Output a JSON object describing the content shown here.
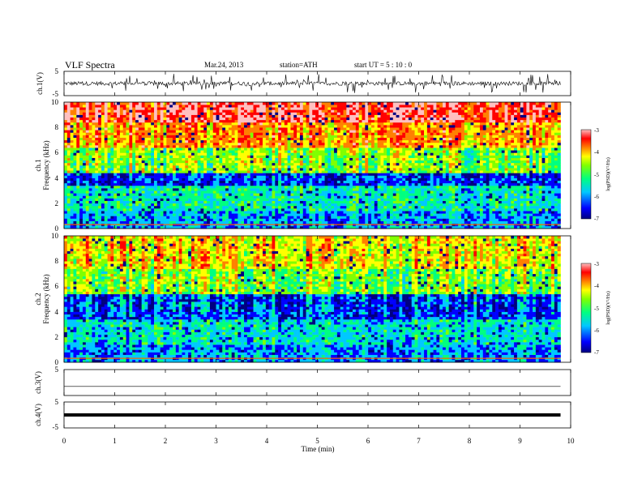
{
  "header": {
    "title": "VLF  Spectra",
    "date": "Mar.24, 2013",
    "station": "station=ATH",
    "start_time": "start  UT  =   5  : 10 : 0"
  },
  "chart_data": [
    {
      "type": "line",
      "panel": "ch1-waveform",
      "ylabel": "ch.1(V)",
      "ylim": [
        -5,
        5
      ],
      "yticks": [
        "5",
        "-5"
      ],
      "description_level": "noisy signal centred near 0 V, spikes up to about ±4 V"
    },
    {
      "type": "heatmap",
      "panel": "ch1-spectrogram",
      "ylabel": "ch.1",
      "ylabel2": "Frequency  (kHz)",
      "ylim": [
        0,
        10
      ],
      "yticks": [
        "0",
        "2",
        "4",
        "6",
        "8",
        "10"
      ],
      "colorbar": {
        "label": "log(PSD)(V²/Hz)",
        "ticks": [
          "-3",
          "-4",
          "-5",
          "-6",
          "-7"
        ],
        "range": [
          -7,
          -3
        ]
      },
      "bands": [
        {
          "f_from": 8.5,
          "f_to": 10,
          "level": -3.6
        },
        {
          "f_from": 6.5,
          "f_to": 8.5,
          "level": -4.2
        },
        {
          "f_from": 4.5,
          "f_to": 6.5,
          "level": -5.0
        },
        {
          "f_from": 3.5,
          "f_to": 4.5,
          "level": -6.3
        },
        {
          "f_from": 1.5,
          "f_to": 3.5,
          "level": -5.6
        },
        {
          "f_from": 0,
          "f_to": 1.5,
          "level": -6.0
        }
      ]
    },
    {
      "type": "heatmap",
      "panel": "ch2-spectrogram",
      "ylabel": "ch.2",
      "ylabel2": "Frequency  (kHz)",
      "ylim": [
        0,
        10
      ],
      "yticks": [
        "0",
        "2",
        "4",
        "6",
        "8",
        "10"
      ],
      "colorbar": {
        "label": "log(PSD)(V²/Hz)",
        "ticks": [
          "-3",
          "-4",
          "-5",
          "-6",
          "-7"
        ],
        "range": [
          -7,
          -3
        ]
      },
      "bands": [
        {
          "f_from": 7.5,
          "f_to": 10,
          "level": -4.5
        },
        {
          "f_from": 5.5,
          "f_to": 7.5,
          "level": -5.0
        },
        {
          "f_from": 3.5,
          "f_to": 5.5,
          "level": -6.2
        },
        {
          "f_from": 1.5,
          "f_to": 3.5,
          "level": -5.7
        },
        {
          "f_from": 0,
          "f_to": 1.5,
          "level": -6.0
        }
      ]
    },
    {
      "type": "line",
      "panel": "ch3-waveform",
      "ylabel": "ch.3(V)",
      "ylim": [
        -5,
        5
      ],
      "yticks": [
        "5"
      ],
      "level": -1.5
    },
    {
      "type": "line",
      "panel": "ch4-waveform",
      "ylabel": "ch.4(V)",
      "ylim": [
        -5,
        5
      ],
      "yticks": [
        "5",
        "-5"
      ],
      "level": 0
    }
  ],
  "xaxis": {
    "xlabel": "Time  (min)",
    "xlim": [
      0,
      10
    ],
    "ticks": [
      "0",
      "1",
      "2",
      "3",
      "4",
      "5",
      "6",
      "7",
      "8",
      "9",
      "10"
    ],
    "data_end": 9.8
  },
  "colors": {
    "colormap": [
      "#000080",
      "#0000ff",
      "#00c8ff",
      "#00ff80",
      "#80ff00",
      "#ffff00",
      "#ff8000",
      "#ff0000",
      "#ffc0c0"
    ],
    "trace": "#000000"
  }
}
